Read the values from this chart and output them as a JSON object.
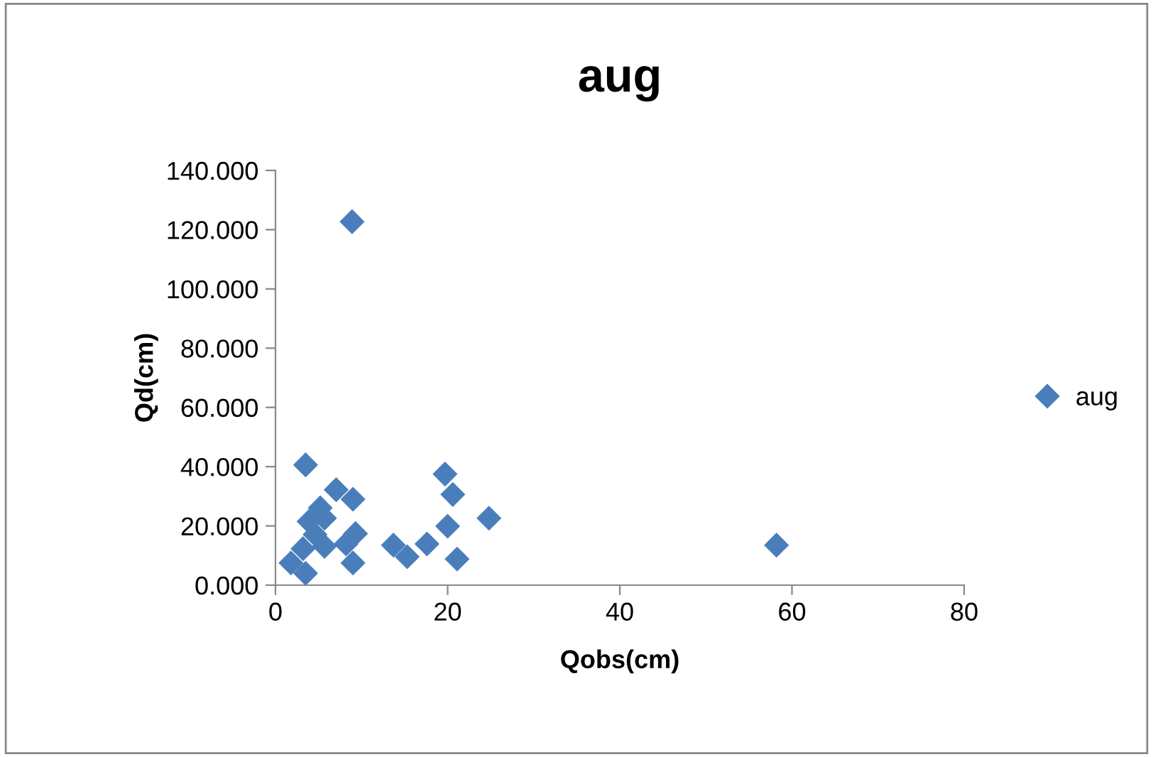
{
  "chart_data": {
    "type": "scatter",
    "title": "aug",
    "xlabel": "Qobs(cm)",
    "ylabel": "Qd(cm)",
    "series": [
      {
        "name": "aug",
        "color": "#4a7ebb",
        "x": [
          8.9,
          3.5,
          7.05,
          9.0,
          5.2,
          3.9,
          5.7,
          19.7,
          20.6,
          20.0,
          24.8,
          9.3,
          4.6,
          5.7,
          8.2,
          13.7,
          15.3,
          17.6,
          21.1,
          9.0,
          1.8,
          3.5,
          58.2,
          3.2
        ],
        "values": [
          122.7,
          40.6,
          32.2,
          29.0,
          26.1,
          21.5,
          22.6,
          37.5,
          30.6,
          19.9,
          22.6,
          17.4,
          17.1,
          13.1,
          13.9,
          13.5,
          9.6,
          13.9,
          8.8,
          7.5,
          7.5,
          4.0,
          13.5,
          12.3
        ]
      }
    ],
    "xlim": [
      0,
      80
    ],
    "xticks": [
      0,
      20,
      40,
      60,
      80
    ],
    "ylim": [
      0,
      140
    ],
    "yticks": [
      {
        "value": 0,
        "label": "0.000"
      },
      {
        "value": 20,
        "label": "20.000"
      },
      {
        "value": 40,
        "label": "40.000"
      },
      {
        "value": 60,
        "label": "60.000"
      },
      {
        "value": 80,
        "label": "80.000"
      },
      {
        "value": 100,
        "label": "100.000"
      },
      {
        "value": 120,
        "label": "120.000"
      },
      {
        "value": 140,
        "label": "140.000"
      }
    ],
    "marker": "diamond",
    "grid": false,
    "legend": "right"
  }
}
